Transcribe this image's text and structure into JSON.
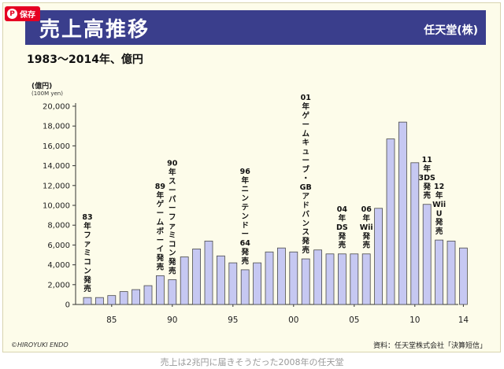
{
  "pin_button": {
    "label": "保存",
    "icon": "pinterest-icon"
  },
  "header": {
    "company": "任天堂(株)"
  },
  "subtitle": "1983〜2014年、億円",
  "caption": "売上は2兆円に届きそうだった2008年の任天堂",
  "credit": "©HIROYUKI ENDO",
  "source": "資料：任天堂株式会社「決算短信」",
  "colors": {
    "bar": "#c6c8f2",
    "bar_border": "#4a4a4a",
    "header_bg": "#3a3e8c",
    "panel_bg": "#fdfcea"
  },
  "chart_data": {
    "type": "bar",
    "title": "売上高推移",
    "unit_label": "(億円)",
    "unit_label_en": "(100M yen)",
    "x": [
      1983,
      1984,
      1985,
      1986,
      1987,
      1988,
      1989,
      1990,
      1991,
      1992,
      1993,
      1994,
      1995,
      1996,
      1997,
      1998,
      1999,
      2000,
      2001,
      2002,
      2003,
      2004,
      2005,
      2006,
      2007,
      2008,
      2009,
      2010,
      2011,
      2012,
      2013,
      2014
    ],
    "values": [
      700,
      700,
      900,
      1300,
      1500,
      1900,
      2900,
      2500,
      4800,
      5600,
      6400,
      4900,
      4200,
      3500,
      4200,
      5300,
      5700,
      5300,
      4600,
      5500,
      5100,
      5100,
      5100,
      5100,
      9700,
      16700,
      18400,
      14300,
      10100,
      6500,
      6400,
      5700
    ],
    "ylim": [
      0,
      20000
    ],
    "yticks": [
      0,
      2000,
      4000,
      6000,
      8000,
      10000,
      12000,
      14000,
      16000,
      18000,
      20000
    ],
    "ytick_labels": [
      "0",
      "2,000",
      "4,000",
      "6,000",
      "8,000",
      "10,000",
      "12,000",
      "14,000",
      "16,000",
      "18,000",
      "20,000"
    ],
    "xticks": [
      {
        "year": 1985,
        "label": "85"
      },
      {
        "year": 1990,
        "label": "90"
      },
      {
        "year": 1995,
        "label": "95"
      },
      {
        "year": 2000,
        "label": "00"
      },
      {
        "year": 2005,
        "label": "05"
      },
      {
        "year": 2010,
        "label": "10"
      },
      {
        "year": 2014,
        "label": "14"
      }
    ],
    "annotations": [
      {
        "year": 1983,
        "lines": [
          "83",
          "年",
          "フ",
          "ァ",
          "ミ",
          "コ",
          "ン",
          "発",
          "売"
        ]
      },
      {
        "year": 1989,
        "lines": [
          "89",
          "年",
          "ゲ",
          "ー",
          "ム",
          "ボ",
          "ー",
          "イ",
          "発",
          "売"
        ]
      },
      {
        "year": 1990,
        "lines": [
          "90",
          "年",
          "ス",
          "ー",
          "パ",
          "ー",
          "フ",
          "ァ",
          "ミ",
          "コ",
          "ン",
          "発",
          "売"
        ]
      },
      {
        "year": 1996,
        "lines": [
          "96",
          "年",
          "ニ",
          "ン",
          "テ",
          "ン",
          "ド",
          "ー",
          "64",
          "発",
          "売"
        ]
      },
      {
        "year": 2001,
        "lines": [
          "01",
          "年",
          "ゲ",
          "ー",
          "ム",
          "キ",
          "ュ",
          "ー",
          "ブ",
          "・",
          "GB",
          "ア",
          "ド",
          "バ",
          "ン",
          "ス",
          "発",
          "売"
        ]
      },
      {
        "year": 2004,
        "lines": [
          "04",
          "年",
          "DS",
          "発",
          "売"
        ]
      },
      {
        "year": 2006,
        "lines": [
          "06",
          "年",
          "Wii",
          "発",
          "売"
        ]
      },
      {
        "year": 2011,
        "lines": [
          "11",
          "年",
          "3DS",
          "発",
          "売"
        ]
      },
      {
        "year": 2012,
        "lines": [
          "12",
          "年",
          "Wii",
          "U",
          "発",
          "売"
        ]
      }
    ]
  }
}
